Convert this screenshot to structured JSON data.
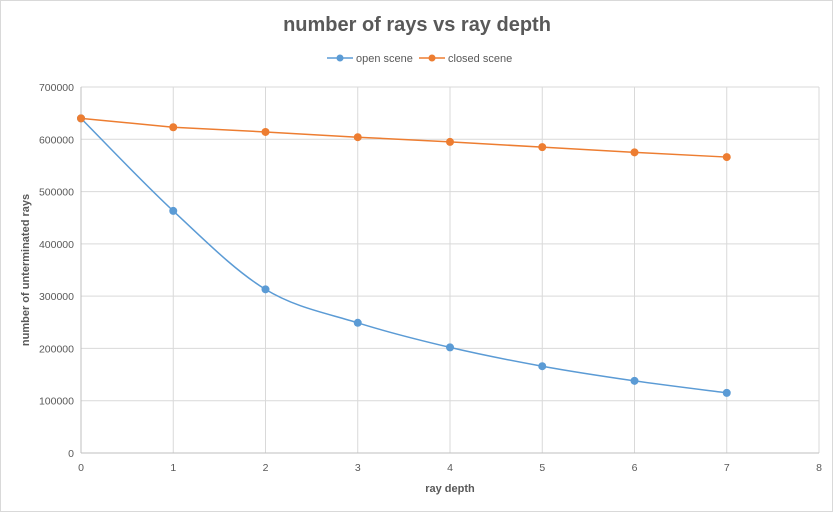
{
  "chart_data": {
    "type": "scatter",
    "title": "number of rays vs ray depth",
    "xlabel": "ray depth",
    "ylabel": "number of unterminated rays",
    "xlim": [
      0,
      8
    ],
    "ylim": [
      0,
      700000
    ],
    "x_ticks": [
      "0",
      "1",
      "2",
      "3",
      "4",
      "5",
      "6",
      "7",
      "8"
    ],
    "y_ticks": [
      "0",
      "100000",
      "200000",
      "300000",
      "400000",
      "500000",
      "600000",
      "700000"
    ],
    "grid": true,
    "legend_position": "top",
    "series": [
      {
        "name": "open scene",
        "color": "#5b9bd5",
        "smooth": true,
        "x": [
          0,
          1,
          2,
          3,
          4,
          5,
          6,
          7
        ],
        "y": [
          640000,
          463000,
          313000,
          249000,
          202000,
          166000,
          138000,
          115000
        ]
      },
      {
        "name": "closed scene",
        "color": "#ed7d31",
        "smooth": false,
        "x": [
          0,
          1,
          2,
          3,
          4,
          5,
          6,
          7
        ],
        "y": [
          640000,
          623000,
          614000,
          604000,
          595000,
          585000,
          575000,
          566000
        ]
      }
    ]
  }
}
